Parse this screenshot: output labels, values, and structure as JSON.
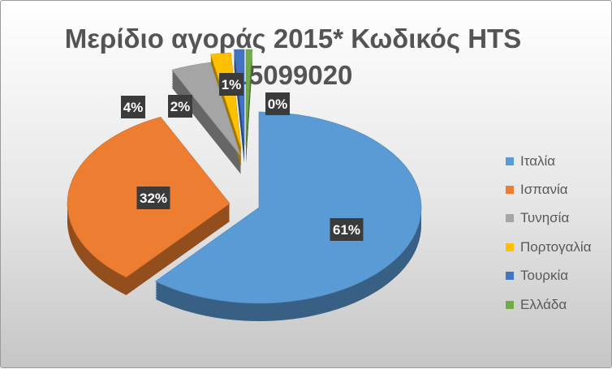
{
  "chart_data": {
    "type": "pie",
    "title_lines": [
      "Μερίδιο αγοράς 2015* Κωδικός HTS",
      "15099020"
    ],
    "categories": [
      "Ιταλία",
      "Ισπανία",
      "Τυνησία",
      "Πορτογαλία",
      "Τουρκία",
      "Ελλάδα"
    ],
    "values": [
      61,
      32,
      4,
      2,
      1,
      0
    ],
    "data_labels": [
      "61%",
      "32%",
      "4%",
      "2%",
      "1%",
      "0%"
    ],
    "colors": [
      "#5b9bd5",
      "#ed7d31",
      "#a5a5a5",
      "#ffc000",
      "#4472c4",
      "#70ad47"
    ],
    "exploded": true,
    "three_d": true,
    "legend_position": "right"
  }
}
